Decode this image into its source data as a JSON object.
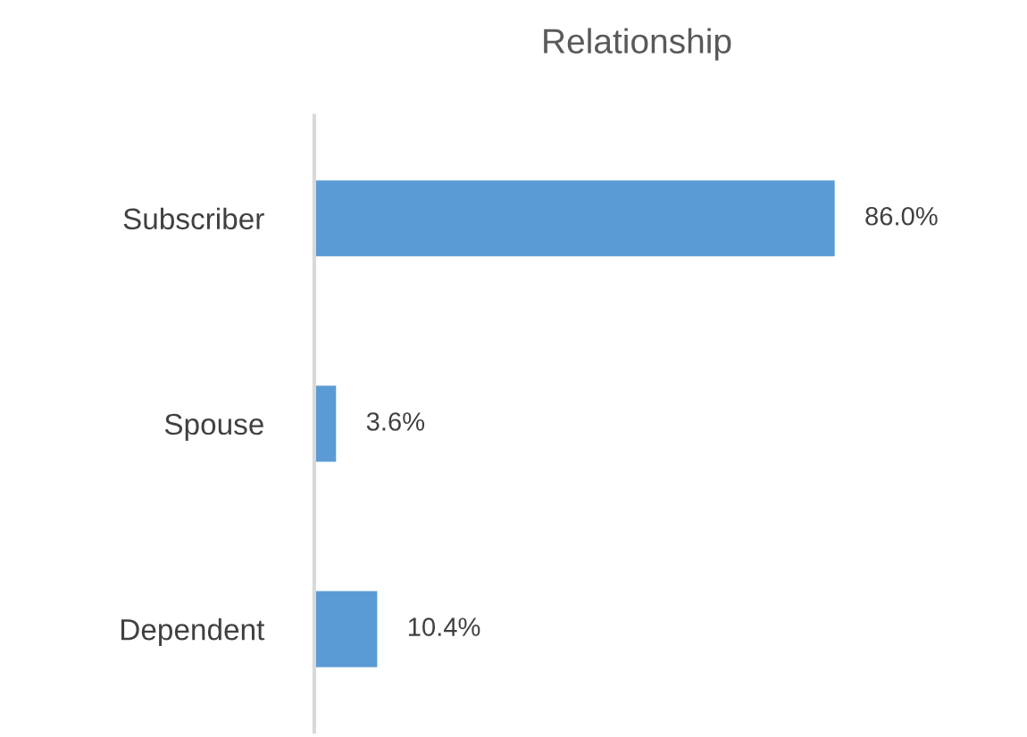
{
  "chart_data": {
    "type": "bar",
    "orientation": "horizontal",
    "title": "Relationship",
    "categories": [
      "Subscriber",
      "Spouse",
      "Dependent"
    ],
    "values": [
      86.0,
      3.6,
      10.4
    ],
    "value_labels": [
      "86.0%",
      "3.6%",
      "10.4%"
    ],
    "color": "#5b9bd5",
    "grid": false,
    "legend": false,
    "tick_labels": "y"
  }
}
